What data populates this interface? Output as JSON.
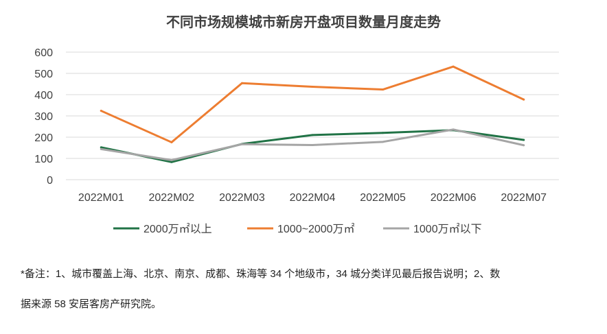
{
  "chart_data": {
    "type": "line",
    "title": "不同市场规模城市新房开盘项目数量月度走势",
    "xlabel": "",
    "ylabel": "",
    "categories": [
      "2022M01",
      "2022M02",
      "2022M03",
      "2022M04",
      "2022M05",
      "2022M06",
      "2022M07"
    ],
    "y_ticks": [
      "0",
      "100",
      "200",
      "300",
      "400",
      "500",
      "600"
    ],
    "ylim": [
      0,
      600
    ],
    "grid": true,
    "legend_position": "bottom",
    "series": [
      {
        "name": "2000万㎡以上",
        "color": "#217346",
        "values": [
          152,
          83,
          168,
          210,
          220,
          233,
          187
        ]
      },
      {
        "name": "1000~2000万㎡",
        "color": "#ED7D31",
        "values": [
          324,
          176,
          454,
          437,
          424,
          532,
          377
        ]
      },
      {
        "name": "1000万㎡以下",
        "color": "#A5A5A5",
        "values": [
          144,
          92,
          167,
          163,
          178,
          236,
          162
        ]
      }
    ]
  },
  "notes": {
    "line1": "*备注：1、城市覆盖上海、北京、南京、成都、珠海等 34 个地级市，34 城分类详见最后报告说明；2、数",
    "line2": "据来源 58 安居客房产研究院。"
  }
}
